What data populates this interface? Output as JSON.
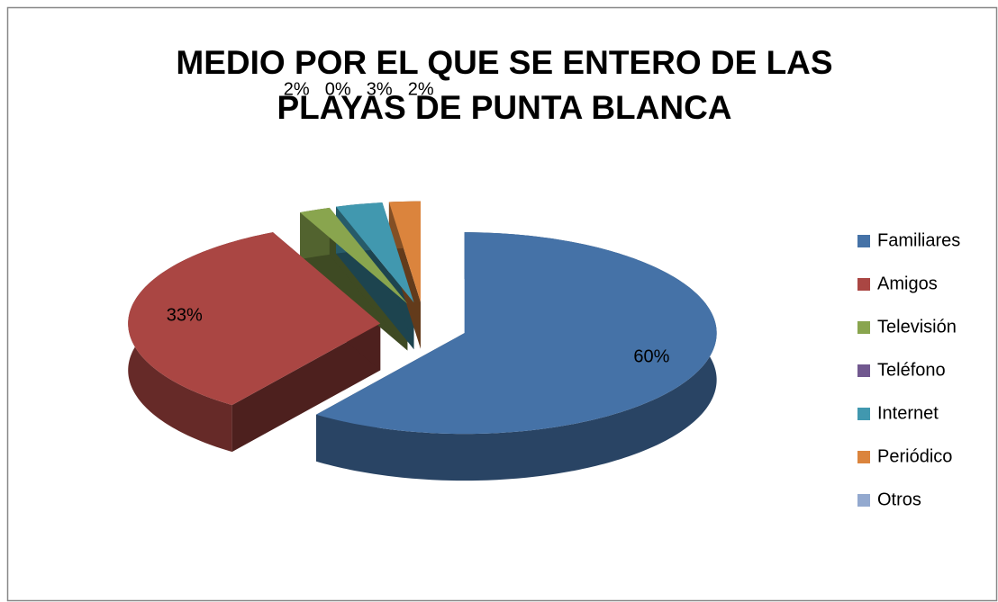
{
  "chart_data": {
    "type": "pie",
    "style": "3d-exploded",
    "title": [
      "MEDIO POR EL QUE SE ENTERO DE LAS",
      "PLAYAS DE PUNTA BLANCA"
    ],
    "categories": [
      "Familiares",
      "Amigos",
      "Televisión",
      "Teléfono",
      "Internet",
      "Periódico",
      "Otros"
    ],
    "values": [
      60,
      33,
      2,
      0,
      3,
      2,
      0
    ],
    "value_labels": [
      "60%",
      "33%",
      "2%",
      "0%",
      "3%",
      "2%",
      null
    ],
    "colors": [
      "#4572a7",
      "#aa4643",
      "#89a54e",
      "#71588f",
      "#4198af",
      "#db843d",
      "#93a9cf"
    ],
    "legend": "right"
  }
}
